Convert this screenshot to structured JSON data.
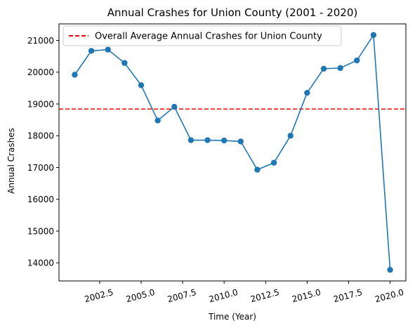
{
  "chart_data": {
    "type": "line",
    "title": "Annual Crashes for Union County (2001 - 2020)",
    "xlabel": "Time (Year)",
    "ylabel": "Annual Crashes",
    "x": [
      2001,
      2002,
      2003,
      2004,
      2005,
      2006,
      2007,
      2008,
      2009,
      2010,
      2011,
      2012,
      2013,
      2014,
      2015,
      2016,
      2017,
      2018,
      2019,
      2020
    ],
    "series": [
      {
        "values": [
          19920,
          20670,
          20710,
          20290,
          19590,
          18480,
          18910,
          17860,
          17860,
          17850,
          17820,
          16930,
          17150,
          18000,
          19350,
          20110,
          20130,
          20370,
          21170,
          13780
        ],
        "color": "#1f77b4"
      }
    ],
    "average_line": {
      "label": "Overall Average Annual Crashes for Union County",
      "value": 18840,
      "color": "#ff0000"
    },
    "xlim": [
      2000.05,
      2020.95
    ],
    "ylim": [
      13430,
      21520
    ],
    "xticks": [
      2002.5,
      2005.0,
      2007.5,
      2010.0,
      2012.5,
      2015.0,
      2017.5,
      2020.0
    ],
    "xtick_labels": [
      "2002.5",
      "2005.0",
      "2007.5",
      "2010.0",
      "2012.5",
      "2015.0",
      "2017.5",
      "2020.0"
    ],
    "yticks": [
      14000,
      15000,
      16000,
      17000,
      18000,
      19000,
      20000,
      21000
    ],
    "ytick_labels": [
      "14000",
      "15000",
      "16000",
      "17000",
      "18000",
      "19000",
      "20000",
      "21000"
    ],
    "xtick_rotation": 15,
    "grid": false,
    "legend_position": "upper-left"
  }
}
